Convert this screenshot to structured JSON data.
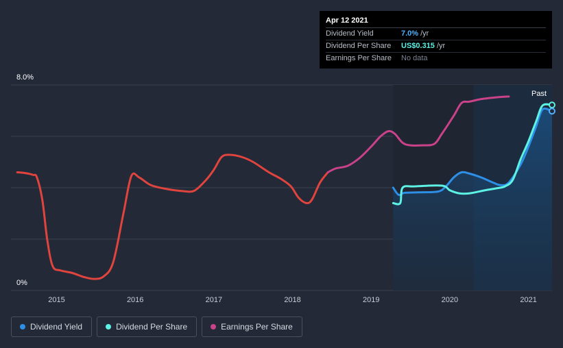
{
  "tooltip": {
    "date": "Apr 12 2021",
    "rows": [
      {
        "label": "Dividend Yield",
        "value": "7.0%",
        "unit": "/yr"
      },
      {
        "label": "Dividend Per Share",
        "value": "US$0.315",
        "unit": "/yr"
      },
      {
        "label": "Earnings Per Share",
        "value": "No data"
      }
    ]
  },
  "legend": [
    {
      "label": "Dividend Yield",
      "color": "#2e8fe6"
    },
    {
      "label": "Dividend Per Share",
      "color": "#5ef2e4"
    },
    {
      "label": "Earnings Per Share",
      "color": "#c9428a"
    }
  ],
  "chart_data": {
    "type": "line",
    "y_max_label": "8.0%",
    "y_min_label": "0%",
    "past_label": "Past",
    "ylim": [
      0,
      8
    ],
    "xlim": [
      2014.42,
      2021.3
    ],
    "past_start": 2020.3,
    "forecast_start": 2019.28,
    "x_ticks": [
      "2015",
      "2016",
      "2017",
      "2018",
      "2019",
      "2020",
      "2021"
    ],
    "series": [
      {
        "name": "Earnings Per Share (red segment)",
        "color": "#e0443e",
        "points": [
          [
            2014.5,
            4.6
          ],
          [
            2014.6,
            4.57
          ],
          [
            2014.7,
            4.5
          ],
          [
            2014.75,
            4.4
          ],
          [
            2014.82,
            3.5
          ],
          [
            2014.88,
            2
          ],
          [
            2014.95,
            0.95
          ],
          [
            2015.05,
            0.78
          ],
          [
            2015.2,
            0.68
          ],
          [
            2015.35,
            0.52
          ],
          [
            2015.48,
            0.45
          ],
          [
            2015.6,
            0.55
          ],
          [
            2015.72,
            1.1
          ],
          [
            2015.85,
            3
          ],
          [
            2015.95,
            4.45
          ],
          [
            2016.05,
            4.4
          ],
          [
            2016.2,
            4.1
          ],
          [
            2016.4,
            3.95
          ],
          [
            2016.6,
            3.87
          ],
          [
            2016.75,
            3.88
          ],
          [
            2016.9,
            4.3
          ],
          [
            2017.0,
            4.7
          ],
          [
            2017.1,
            5.2
          ],
          [
            2017.2,
            5.28
          ],
          [
            2017.35,
            5.2
          ],
          [
            2017.5,
            5.0
          ],
          [
            2017.7,
            4.6
          ],
          [
            2017.85,
            4.35
          ],
          [
            2017.98,
            4.05
          ],
          [
            2018.08,
            3.6
          ],
          [
            2018.18,
            3.4
          ],
          [
            2018.25,
            3.55
          ],
          [
            2018.35,
            4.2
          ],
          [
            2018.45,
            4.6
          ]
        ]
      },
      {
        "name": "Earnings Per Share",
        "color": "#c9428a",
        "points": [
          [
            2018.45,
            4.6
          ],
          [
            2018.55,
            4.75
          ],
          [
            2018.7,
            4.85
          ],
          [
            2018.85,
            5.15
          ],
          [
            2019.0,
            5.6
          ],
          [
            2019.12,
            6.0
          ],
          [
            2019.22,
            6.2
          ],
          [
            2019.3,
            6.1
          ],
          [
            2019.4,
            5.75
          ],
          [
            2019.5,
            5.65
          ],
          [
            2019.65,
            5.65
          ],
          [
            2019.8,
            5.7
          ],
          [
            2019.9,
            6.1
          ],
          [
            2020.05,
            6.8
          ],
          [
            2020.15,
            7.3
          ],
          [
            2020.25,
            7.35
          ],
          [
            2020.4,
            7.45
          ],
          [
            2020.6,
            7.52
          ],
          [
            2020.75,
            7.55
          ]
        ]
      },
      {
        "name": "Dividend Yield",
        "color": "#2e8fe6",
        "points": [
          [
            2019.28,
            4.0
          ],
          [
            2019.35,
            3.72
          ],
          [
            2019.42,
            3.8
          ],
          [
            2019.6,
            3.82
          ],
          [
            2019.85,
            3.85
          ],
          [
            2019.95,
            4.05
          ],
          [
            2020.05,
            4.4
          ],
          [
            2020.15,
            4.6
          ],
          [
            2020.25,
            4.55
          ],
          [
            2020.4,
            4.4
          ],
          [
            2020.55,
            4.2
          ],
          [
            2020.65,
            4.1
          ],
          [
            2020.75,
            4.2
          ],
          [
            2020.9,
            4.9
          ],
          [
            2021.0,
            5.6
          ],
          [
            2021.1,
            6.4
          ],
          [
            2021.18,
            7.05
          ],
          [
            2021.3,
            6.98
          ]
        ]
      },
      {
        "name": "Dividend Per Share",
        "color": "#5ef2e4",
        "points": [
          [
            2019.28,
            3.4
          ],
          [
            2019.37,
            3.4
          ],
          [
            2019.4,
            4.0
          ],
          [
            2019.55,
            4.05
          ],
          [
            2019.9,
            4.08
          ],
          [
            2020.0,
            3.9
          ],
          [
            2020.12,
            3.78
          ],
          [
            2020.25,
            3.78
          ],
          [
            2020.45,
            3.9
          ],
          [
            2020.6,
            3.98
          ],
          [
            2020.7,
            4.05
          ],
          [
            2020.8,
            4.3
          ],
          [
            2020.9,
            5.1
          ],
          [
            2021.0,
            5.8
          ],
          [
            2021.1,
            6.6
          ],
          [
            2021.18,
            7.2
          ],
          [
            2021.3,
            7.22
          ]
        ]
      }
    ]
  }
}
